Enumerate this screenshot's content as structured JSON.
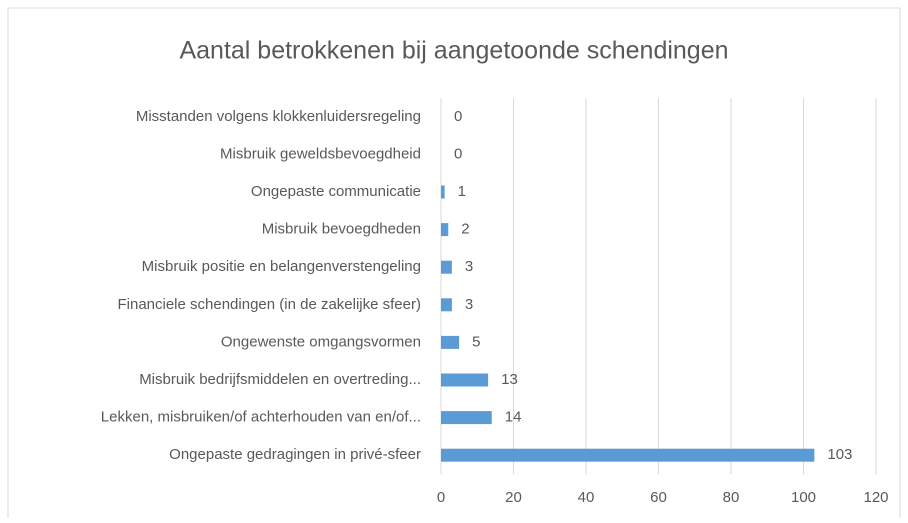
{
  "chart_data": {
    "type": "barh",
    "title": "Aantal betrokkenen bij aangetoonde schendingen",
    "categories": [
      "Misstanden volgens klokkenluidersregeling",
      "Misbruik geweldsbevoegdheid",
      "Ongepaste communicatie",
      "Misbruik bevoegdheden",
      "Misbruik positie en belangenverstengeling",
      "Financiele schendingen (in de zakelijke sfeer)",
      "Ongewenste omgangsvormen",
      "Misbruik bedrijfsmiddelen en overtreding...",
      "Lekken, misbruiken/of achterhouden van en/of...",
      "Ongepaste gedragingen in privé-sfeer"
    ],
    "values": [
      0,
      0,
      1,
      2,
      3,
      3,
      5,
      13,
      14,
      103
    ],
    "color": "#5b9bd5",
    "xlim": [
      0,
      120
    ],
    "xticks": [
      0,
      20,
      40,
      60,
      80,
      100,
      120
    ],
    "grid": true
  }
}
